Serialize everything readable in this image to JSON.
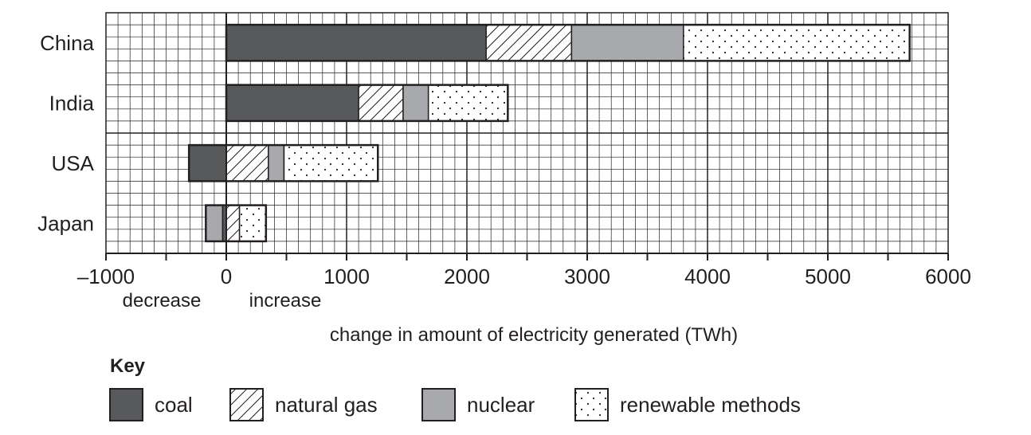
{
  "chart_data": {
    "type": "bar",
    "orientation": "horizontal",
    "stacked": true,
    "title": "",
    "xlabel": "change in amount of electricity generated (TWh)",
    "ylabel": "",
    "xlim": [
      -1000,
      6000
    ],
    "xticks": [
      -1000,
      0,
      1000,
      2000,
      3000,
      4000,
      5000,
      6000
    ],
    "xtick_labels": [
      "–1000",
      "0",
      "1000",
      "2000",
      "3000",
      "4000",
      "5000",
      "6000"
    ],
    "x_annotations": [
      "decrease",
      "increase"
    ],
    "grid": true,
    "categories": [
      "China",
      "India",
      "USA",
      "Japan"
    ],
    "segments": {
      "China": [
        {
          "source": "coal",
          "start": 0,
          "end": 2160
        },
        {
          "source": "natural gas",
          "start": 2160,
          "end": 2870
        },
        {
          "source": "nuclear",
          "start": 2870,
          "end": 3800
        },
        {
          "source": "renewable methods",
          "start": 3800,
          "end": 5680
        }
      ],
      "India": [
        {
          "source": "coal",
          "start": 0,
          "end": 1100
        },
        {
          "source": "natural gas",
          "start": 1100,
          "end": 1470
        },
        {
          "source": "nuclear",
          "start": 1470,
          "end": 1680
        },
        {
          "source": "renewable methods",
          "start": 1680,
          "end": 2340
        }
      ],
      "USA": [
        {
          "source": "coal",
          "start": -310,
          "end": 0
        },
        {
          "source": "natural gas",
          "start": 0,
          "end": 350
        },
        {
          "source": "nuclear",
          "start": 350,
          "end": 480
        },
        {
          "source": "renewable methods",
          "start": 480,
          "end": 1260
        }
      ],
      "Japan": [
        {
          "source": "nuclear",
          "start": -170,
          "end": -30
        },
        {
          "source": "coal",
          "start": -30,
          "end": 0
        },
        {
          "source": "natural gas",
          "start": 0,
          "end": 110
        },
        {
          "source": "renewable methods",
          "start": 110,
          "end": 330
        }
      ]
    },
    "series": [
      {
        "name": "coal",
        "values": [
          2160,
          1100,
          -310,
          -30
        ]
      },
      {
        "name": "natural gas",
        "values": [
          710,
          370,
          350,
          110
        ]
      },
      {
        "name": "nuclear",
        "values": [
          930,
          210,
          130,
          -140
        ]
      },
      {
        "name": "renewable methods",
        "values": [
          1880,
          660,
          780,
          220
        ]
      }
    ],
    "legend_title": "Key",
    "legend": [
      "coal",
      "natural gas",
      "nuclear",
      "renewable methods"
    ],
    "legend_position": "bottom"
  },
  "labels": {
    "decrease": "decrease",
    "increase": "increase",
    "xlabel": "change in amount of electricity generated (TWh)",
    "key": "Key"
  },
  "colors": {
    "coal": "#58595b",
    "nuclear": "#a7a9ac",
    "grid": "#231f20"
  }
}
